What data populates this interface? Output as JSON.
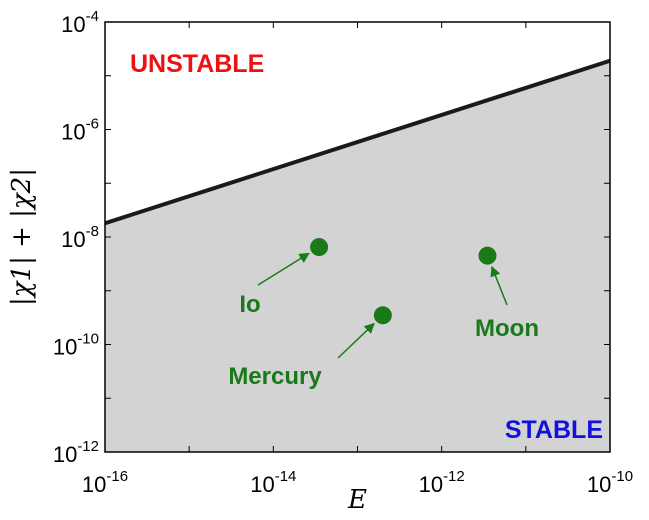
{
  "chart_data": {
    "type": "area",
    "xlabel": "E",
    "ylabel": "|χ1| + |χ2|",
    "xscale": "log",
    "yscale": "log",
    "xlim": [
      1e-16,
      1e-10
    ],
    "ylim": [
      1e-12,
      0.0001
    ],
    "x_ticks": [
      {
        "base": "10",
        "exp": "-16"
      },
      {
        "base": "10",
        "exp": "-14"
      },
      {
        "base": "10",
        "exp": "-12"
      },
      {
        "base": "10",
        "exp": "-10"
      }
    ],
    "y_ticks": [
      {
        "base": "10",
        "exp": "-12"
      },
      {
        "base": "10",
        "exp": "-10"
      },
      {
        "base": "10",
        "exp": "-8"
      },
      {
        "base": "10",
        "exp": "-6"
      },
      {
        "base": "10",
        "exp": "-4"
      }
    ],
    "boundary": {
      "x": [
        1e-16,
        1e-10
      ],
      "y": [
        1.8e-08,
        1.9e-05
      ]
    },
    "regions": {
      "unstable": "UNSTABLE",
      "stable": "STABLE"
    },
    "points": [
      {
        "name": "Io",
        "x": 3.5e-14,
        "y": 6.5e-09
      },
      {
        "name": "Mercury",
        "x": 2e-13,
        "y": 3.5e-10
      },
      {
        "name": "Moon",
        "x": 3.5e-12,
        "y": 4.5e-09
      }
    ],
    "grid": false,
    "legend": "none",
    "colors": {
      "stable_fill": "#d3d3d3",
      "boundary": "#1a1a1a",
      "unstable_text": "#ee1111",
      "stable_text": "#1111dd",
      "point": "#1a7a1a"
    }
  }
}
